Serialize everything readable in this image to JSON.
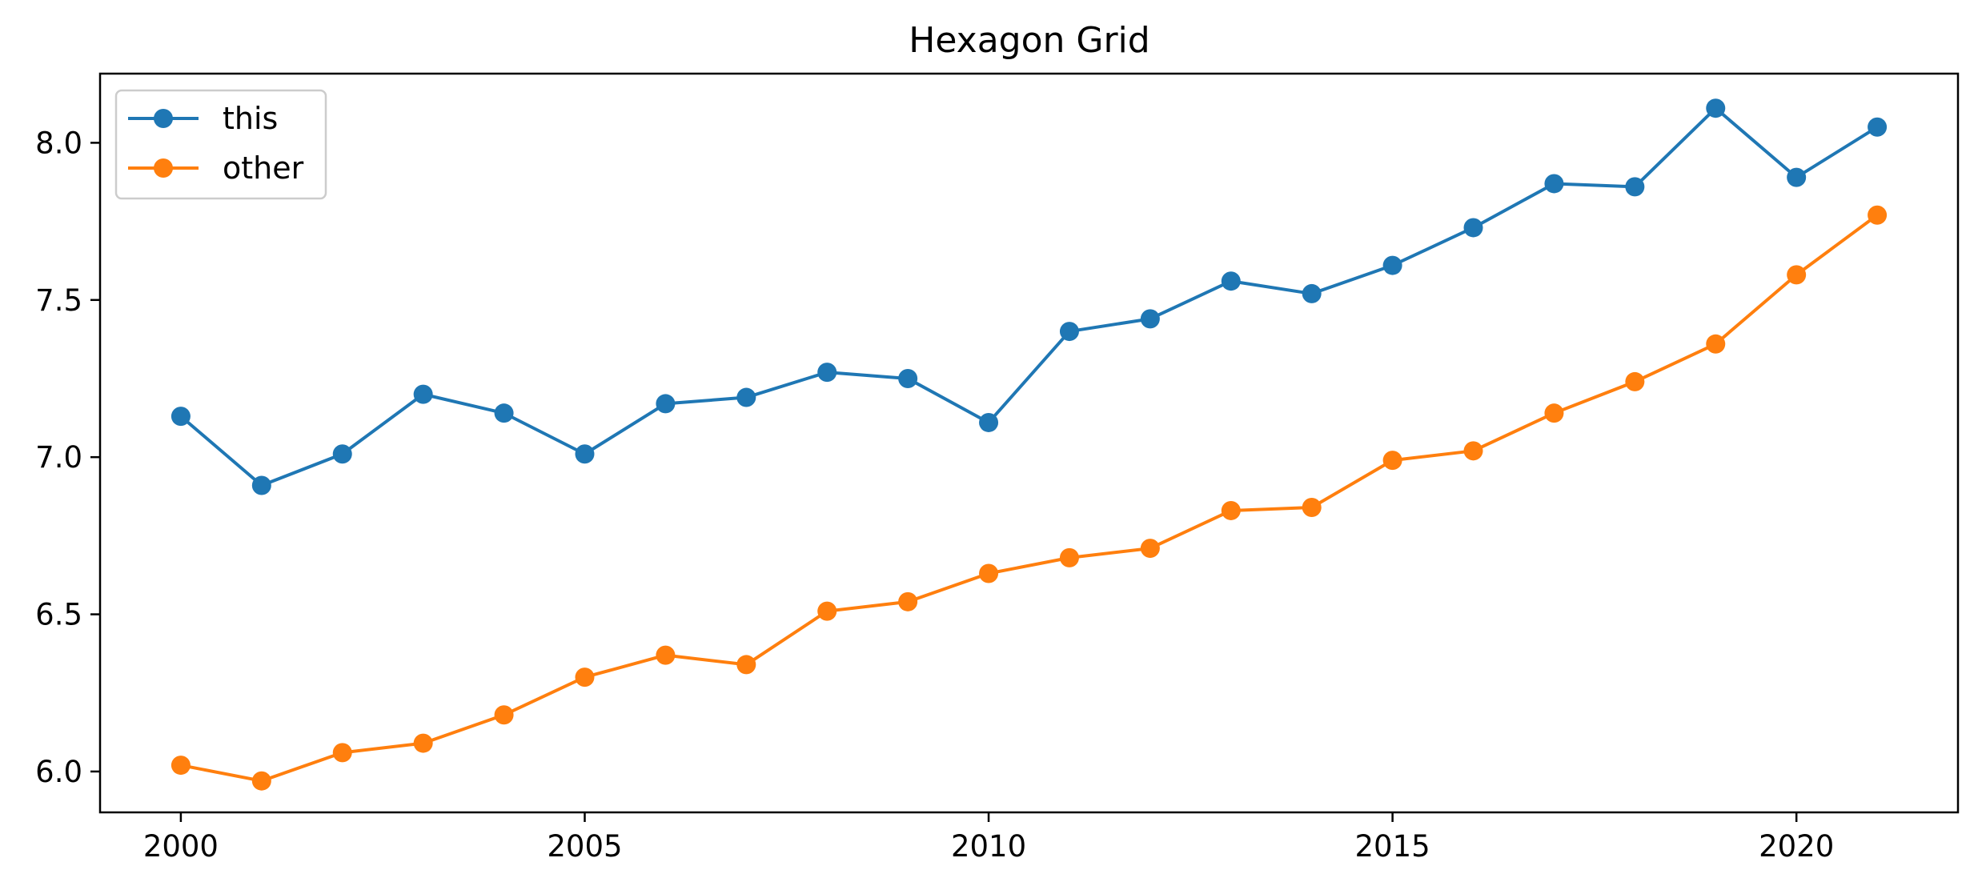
{
  "chart_data": {
    "type": "line",
    "title": "Hexagon Grid",
    "xlabel": "",
    "ylabel": "",
    "x": [
      2000,
      2001,
      2002,
      2003,
      2004,
      2005,
      2006,
      2007,
      2008,
      2009,
      2010,
      2011,
      2012,
      2013,
      2014,
      2015,
      2016,
      2017,
      2018,
      2019,
      2020,
      2021
    ],
    "series": [
      {
        "name": "this",
        "color": "#1f77b4",
        "marker": "circle",
        "values": [
          7.13,
          6.91,
          7.01,
          7.2,
          7.14,
          7.01,
          7.17,
          7.19,
          7.27,
          7.25,
          7.11,
          7.4,
          7.44,
          7.56,
          7.52,
          7.61,
          7.73,
          7.87,
          7.86,
          8.11,
          7.89,
          8.05
        ]
      },
      {
        "name": "other",
        "color": "#ff7f0e",
        "marker": "circle",
        "values": [
          6.02,
          5.97,
          6.06,
          6.09,
          6.18,
          6.3,
          6.37,
          6.34,
          6.51,
          6.54,
          6.63,
          6.68,
          6.71,
          6.83,
          6.84,
          6.99,
          7.02,
          7.14,
          7.24,
          7.36,
          7.58,
          7.77
        ]
      }
    ],
    "xlim": [
      1999.0,
      2022.0
    ],
    "ylim": [
      5.87,
      8.22
    ],
    "xticks": [
      2000,
      2005,
      2010,
      2015,
      2020
    ],
    "yticks": [
      6.0,
      6.5,
      7.0,
      7.5,
      8.0
    ],
    "ytick_labels": [
      "6.0",
      "6.5",
      "7.0",
      "7.5",
      "8.0"
    ],
    "grid": false,
    "legend_position": "top-left"
  }
}
